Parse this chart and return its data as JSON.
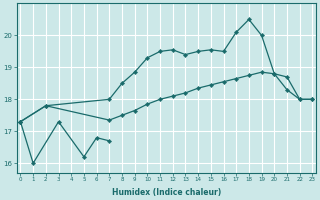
{
  "xlabel": "Humidex (Indice chaleur)",
  "bg_color": "#cce8e8",
  "grid_color": "#ffffff",
  "line_color": "#1a6b6b",
  "ylim": [
    15.7,
    21.0
  ],
  "xlim": [
    -0.3,
    23.3
  ],
  "yticks": [
    16,
    17,
    18,
    19,
    20
  ],
  "xticks": [
    0,
    1,
    2,
    3,
    4,
    5,
    6,
    7,
    8,
    9,
    10,
    11,
    12,
    13,
    14,
    15,
    16,
    17,
    18,
    19,
    20,
    21,
    22,
    23
  ],
  "line1_x": [
    0,
    1,
    3,
    5,
    6,
    7
  ],
  "line1_y": [
    17.3,
    16.0,
    17.3,
    16.2,
    16.8,
    16.7
  ],
  "line2_x": [
    0,
    2,
    7,
    8,
    9,
    10,
    11,
    12,
    13,
    14,
    15,
    16,
    17,
    18,
    19,
    20,
    21,
    22,
    23
  ],
  "line2_y": [
    17.3,
    17.8,
    18.0,
    18.5,
    18.85,
    19.3,
    19.5,
    19.55,
    19.4,
    19.5,
    19.55,
    19.5,
    20.1,
    20.5,
    20.0,
    18.8,
    18.3,
    18.0,
    18.0
  ],
  "line3_x": [
    0,
    2,
    7,
    8,
    9,
    10,
    11,
    12,
    13,
    14,
    15,
    16,
    17,
    18,
    19,
    20,
    21,
    22,
    23
  ],
  "line3_y": [
    17.3,
    17.8,
    17.35,
    17.5,
    17.65,
    17.85,
    18.0,
    18.1,
    18.2,
    18.35,
    18.45,
    18.55,
    18.65,
    18.75,
    18.85,
    18.8,
    18.7,
    18.0,
    18.0
  ]
}
